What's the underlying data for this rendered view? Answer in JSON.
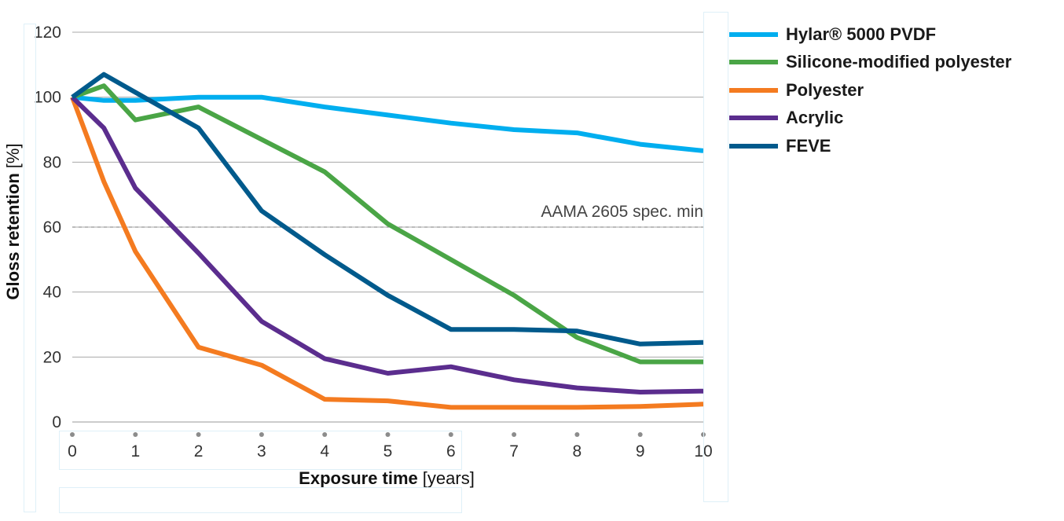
{
  "chart_data": {
    "type": "line",
    "title": "",
    "xlabel_bold": "Exposure time",
    "xlabel_unit": "[years]",
    "ylabel_bold": "Gloss retention",
    "ylabel_unit": "[%]",
    "xlim": [
      0,
      10
    ],
    "ylim": [
      0,
      120
    ],
    "xticks": [
      0,
      1,
      2,
      3,
      4,
      5,
      6,
      7,
      8,
      9,
      10
    ],
    "yticks": [
      0,
      20,
      40,
      60,
      80,
      100,
      120
    ],
    "grid": true,
    "legend_position": "right",
    "reference_line": {
      "value": 60,
      "label": "AAMA 2605 spec. min",
      "style": "dashed"
    },
    "series": [
      {
        "name": "Hylar® 5000 PVDF",
        "color": "#00aeef",
        "x": [
          0,
          0.5,
          1,
          2,
          3,
          4,
          5,
          6,
          7,
          8,
          9,
          10
        ],
        "y": [
          100,
          99,
          99,
          100,
          100,
          97,
          94.5,
          92,
          90,
          89,
          85.5,
          83.5
        ]
      },
      {
        "name": "Silicone-modified polyester",
        "color": "#4aa546",
        "x": [
          0,
          0.5,
          1,
          2,
          3,
          4,
          5,
          6,
          7,
          8,
          9,
          10
        ],
        "y": [
          100,
          103.5,
          93,
          97,
          87,
          77,
          61,
          50,
          39,
          26,
          18.5,
          18.5
        ]
      },
      {
        "name": "Polyester",
        "color": "#f47b20",
        "x": [
          0,
          0.5,
          1,
          2,
          3,
          4,
          5,
          6,
          7,
          8,
          9,
          10
        ],
        "y": [
          100,
          74,
          52.5,
          23,
          17.5,
          7,
          6.5,
          4.5,
          4.5,
          4.5,
          4.8,
          5.5
        ]
      },
      {
        "name": "Acrylic",
        "color": "#5b2d8e",
        "x": [
          0,
          0.5,
          1,
          2,
          3,
          4,
          5,
          6,
          7,
          8,
          9,
          10
        ],
        "y": [
          100,
          90.5,
          72,
          52,
          31,
          19.5,
          15,
          17,
          13,
          10.5,
          9.2,
          9.5
        ]
      },
      {
        "name": "FEVE",
        "color": "#005a8c",
        "x": [
          0,
          0.5,
          1,
          2,
          3,
          4,
          5,
          6,
          7,
          8,
          9,
          10
        ],
        "y": [
          100,
          107,
          101.5,
          90.5,
          65,
          51.5,
          39,
          28.5,
          28.5,
          28,
          24,
          24.5
        ]
      }
    ]
  }
}
